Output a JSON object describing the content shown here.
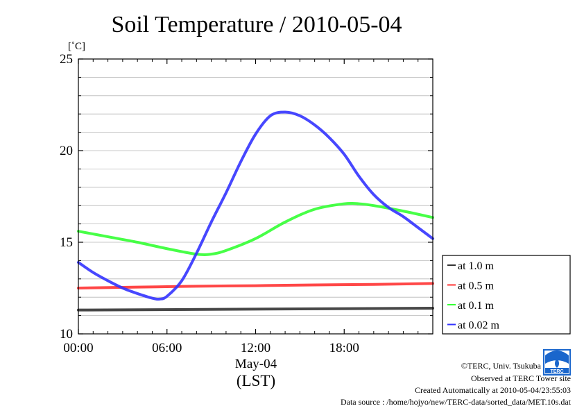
{
  "chart_data": {
    "type": "line",
    "title": "Soil Temperature / 2010-05-04",
    "ylabel": "[˚C]",
    "xlabel": "(LST)",
    "date_label": "May-04",
    "ylim": [
      10,
      25
    ],
    "xlim": [
      0,
      24
    ],
    "yticks": [
      10,
      15,
      20,
      25
    ],
    "ytick_labels": [
      "10",
      "15",
      "20",
      "25"
    ],
    "xticks": [
      0,
      6,
      12,
      18
    ],
    "xtick_labels": [
      "00:00",
      "06:00",
      "12:00",
      "18:00"
    ],
    "grid": true,
    "legend_position": "right",
    "series": [
      {
        "name": "at 1.0 m",
        "color": "#333333",
        "x": [
          0,
          24
        ],
        "y": [
          11.3,
          11.4
        ]
      },
      {
        "name": "at 0.5 m",
        "color": "#ff3333",
        "x": [
          0,
          4,
          8,
          12,
          16,
          20,
          24
        ],
        "y": [
          12.5,
          12.55,
          12.6,
          12.63,
          12.67,
          12.7,
          12.75
        ]
      },
      {
        "name": "at 0.1 m",
        "color": "#33ff33",
        "x": [
          0,
          2,
          4,
          6,
          8,
          9,
          10,
          12,
          14,
          16,
          18,
          19,
          20,
          22,
          24
        ],
        "y": [
          15.6,
          15.3,
          15.0,
          14.65,
          14.35,
          14.35,
          14.55,
          15.2,
          16.1,
          16.8,
          17.1,
          17.1,
          17.0,
          16.7,
          16.35
        ]
      },
      {
        "name": "at 0.02 m",
        "color": "#3333ff",
        "x": [
          0,
          1,
          2,
          3,
          4,
          5,
          5.5,
          6,
          7,
          8,
          9,
          10,
          11,
          12,
          13,
          14,
          15,
          16,
          17,
          18,
          19,
          20,
          21,
          22,
          23,
          24
        ],
        "y": [
          13.9,
          13.35,
          12.9,
          12.5,
          12.2,
          11.95,
          11.9,
          12.05,
          12.9,
          14.4,
          16.1,
          17.7,
          19.4,
          20.9,
          21.9,
          22.1,
          21.9,
          21.4,
          20.7,
          19.8,
          18.6,
          17.6,
          16.9,
          16.4,
          15.8,
          15.2
        ]
      }
    ]
  },
  "footer": {
    "copyright": "©TERC, Univ. Tsukuba",
    "observed": "Observed at TERC Tower site",
    "created": "Created Automatically at 2010-05-04/23:55:03",
    "source": "Data source : /home/hojyo/new/TERC-data/sorted_data/MET.10s.dat"
  },
  "logo": {
    "text": "TERC",
    "color": "#1a66cc"
  }
}
